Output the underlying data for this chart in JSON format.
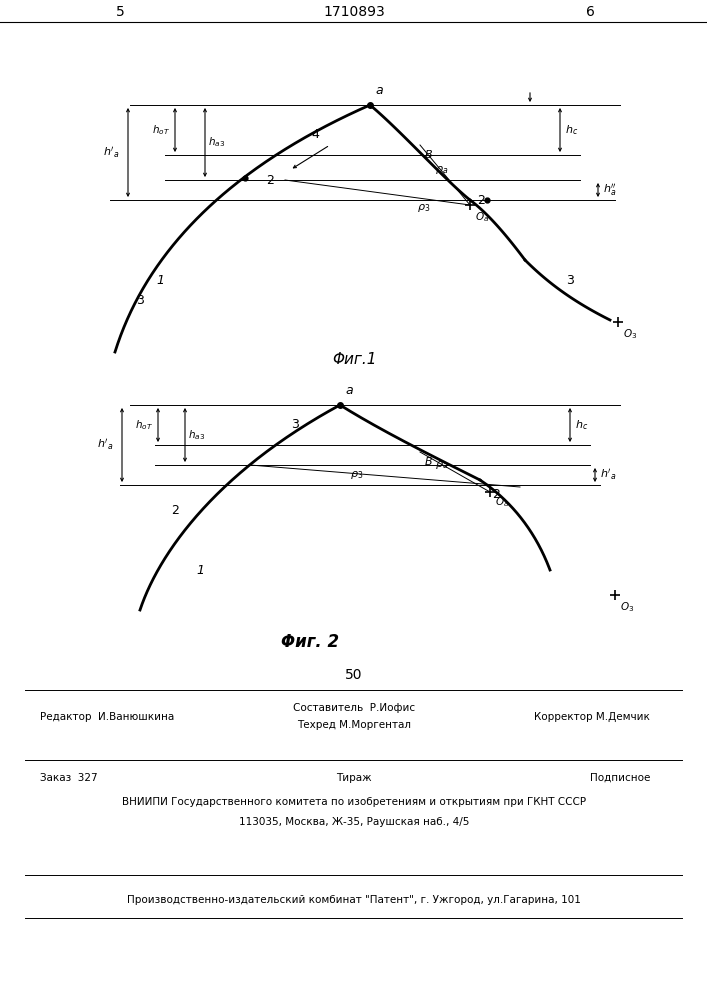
{
  "page_number_left": "5",
  "page_number_center": "1710893",
  "page_number_right": "6",
  "fig1_caption": "Φиг.1",
  "fig2_caption": "Φиг. 2",
  "page_number_50": "50",
  "bg_color": "#ffffff"
}
